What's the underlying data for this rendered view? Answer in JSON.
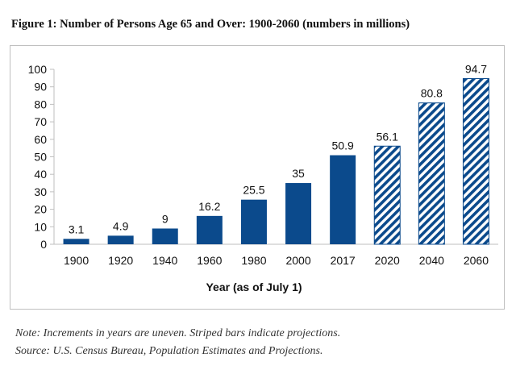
{
  "figure": {
    "title": "Figure 1: Number of Persons Age 65 and Over: 1900-2060 (numbers in millions)",
    "note_line1": "Note: Increments in years are uneven. Striped bars indicate projections.",
    "note_line2": "Source: U.S. Census Bureau, Population Estimates and Projections."
  },
  "chart_data": {
    "type": "bar",
    "title": "Figure 1: Number of Persons Age 65 and Over: 1900-2060 (numbers in millions)",
    "xlabel": "Year (as of July 1)",
    "ylabel": "",
    "categories": [
      "1900",
      "1920",
      "1940",
      "1960",
      "1980",
      "2000",
      "2017",
      "2020",
      "2040",
      "2060"
    ],
    "values": [
      3.1,
      4.9,
      9,
      16.2,
      25.5,
      35,
      50.9,
      56.1,
      80.8,
      94.7
    ],
    "value_labels": [
      "3.1",
      "4.9",
      "9",
      "16.2",
      "25.5",
      "35",
      "50.9",
      "56.1",
      "80.8",
      "94.7"
    ],
    "projected": [
      false,
      false,
      false,
      false,
      false,
      false,
      false,
      true,
      true,
      true
    ],
    "ylim": [
      0,
      100
    ],
    "yticks": [
      0,
      10,
      20,
      30,
      40,
      50,
      60,
      70,
      80,
      90,
      100
    ],
    "grid": false,
    "colors": {
      "bar": "#0b4a8c",
      "axis": "#bfbfbf",
      "text": "#111111"
    }
  }
}
